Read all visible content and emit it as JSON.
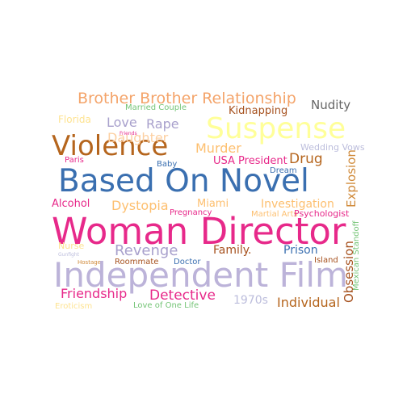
{
  "words": {
    "brother_brother_relationship": {
      "text": "Brother Brother Relationship",
      "color": "#f4a46a"
    },
    "married_couple": {
      "text": "Married Couple",
      "color": "#74c476"
    },
    "kidnapping": {
      "text": "Kidnapping",
      "color": "#a6511e"
    },
    "nudity": {
      "text": "Nudity",
      "color": "#666666"
    },
    "florida": {
      "text": "Florida",
      "color": "#fee391"
    },
    "love": {
      "text": "Love",
      "color": "#a8a0cc"
    },
    "rape": {
      "text": "Rape",
      "color": "#a8a0cc"
    },
    "suspense": {
      "text": "Suspense",
      "color": "#ffff99"
    },
    "friends": {
      "text": "Friends",
      "color": "#e6298a"
    },
    "violence": {
      "text": "Violence",
      "color": "#b5651d"
    },
    "daughter": {
      "text": "Daughter",
      "color": "#fdd0a2"
    },
    "murder": {
      "text": "Murder",
      "color": "#fdbf6f"
    },
    "wedding_vows": {
      "text": "Wedding Vows",
      "color": "#bcbddc"
    },
    "paris": {
      "text": "Paris",
      "color": "#e7298a"
    },
    "baby": {
      "text": "Baby",
      "color": "#3a6fb0"
    },
    "usa_president": {
      "text": "USA President",
      "color": "#e7298a"
    },
    "drug": {
      "text": "Drug",
      "color": "#b5651d"
    },
    "dream": {
      "text": "Dream",
      "color": "#3a6fb0"
    },
    "based_on_novel": {
      "text": "Based On Novel",
      "color": "#3a6fb0"
    },
    "explosion": {
      "text": "Explosion",
      "color": "#d08a3a"
    },
    "alcohol": {
      "text": "Alcohol",
      "color": "#e7298a"
    },
    "dystopia": {
      "text": "Dystopia",
      "color": "#fdbf6f"
    },
    "miami": {
      "text": "Miami",
      "color": "#fdbf6f"
    },
    "investigation": {
      "text": "Investigation",
      "color": "#fdbf6f"
    },
    "pregnancy": {
      "text": "Pregnancy",
      "color": "#e7298a"
    },
    "martial_arts": {
      "text": "Martial Arts",
      "color": "#fdbf6f"
    },
    "psychologist": {
      "text": "Psychologist",
      "color": "#e7298a"
    },
    "woman_director": {
      "text": "Woman Director",
      "color": "#e7298a"
    },
    "revenge": {
      "text": "Revenge",
      "color": "#a8a0cc"
    },
    "family": {
      "text": "Family.",
      "color": "#a6511e"
    },
    "prison": {
      "text": "Prison",
      "color": "#3a6fb0"
    },
    "nurse": {
      "text": "Nurse",
      "color": "#fee391"
    },
    "gunfight": {
      "text": "Gunfight",
      "color": "#bcbddc"
    },
    "hostage": {
      "text": "Hostage",
      "color": "#d08a3a"
    },
    "roommate": {
      "text": "Roommate",
      "color": "#a6511e"
    },
    "doctor": {
      "text": "Doctor",
      "color": "#3a6fb0"
    },
    "island": {
      "text": "Island",
      "color": "#a6511e"
    },
    "obsession": {
      "text": "Obsession",
      "color": "#a6511e"
    },
    "mexican_standoff": {
      "text": "Mexican Standoff",
      "color": "#74c476"
    },
    "independent_film": {
      "text": "Independent Film",
      "color": "#bcb3d9"
    },
    "friendship": {
      "text": "Friendship",
      "color": "#e7298a"
    },
    "detective": {
      "text": "Detective",
      "color": "#e7298a"
    },
    "s1970s": {
      "text": "1970s",
      "color": "#bcbddc"
    },
    "individual": {
      "text": "Individual",
      "color": "#b5651d"
    },
    "eroticism": {
      "text": "Eroticism",
      "color": "#fee391"
    },
    "love_of_one_life": {
      "text": "Love of One Life",
      "color": "#74c476"
    }
  }
}
